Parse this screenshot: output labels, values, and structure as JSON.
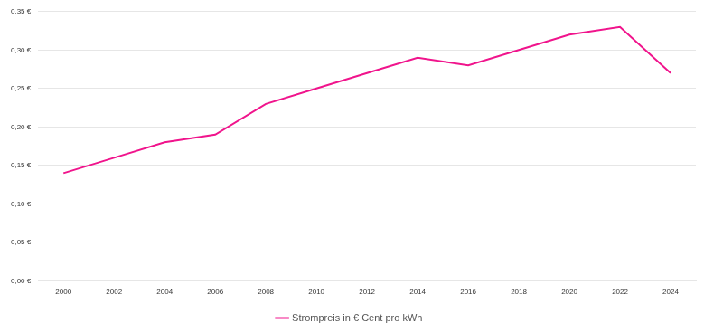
{
  "chart_data": {
    "type": "line",
    "categories": [
      "2000",
      "2002",
      "2004",
      "2006",
      "2008",
      "2010",
      "2012",
      "2014",
      "2016",
      "2018",
      "2020",
      "2022",
      "2024"
    ],
    "series": [
      {
        "name": "Strompreis in € Cent pro kWh",
        "color": "#f0148c",
        "values": [
          0.14,
          0.16,
          0.18,
          0.19,
          0.23,
          0.25,
          0.27,
          0.29,
          0.28,
          0.3,
          0.32,
          0.33,
          0.27
        ]
      }
    ],
    "ylim": [
      0,
      0.35
    ],
    "yticks": [
      {
        "value": 0,
        "label": "0,00 €"
      },
      {
        "value": 0.05,
        "label": "0,05 €"
      },
      {
        "value": 0.1,
        "label": "0,10 €"
      },
      {
        "value": 0.15,
        "label": "0,15 €"
      },
      {
        "value": 0.2,
        "label": "0,20 €"
      },
      {
        "value": 0.25,
        "label": "0,25 €"
      },
      {
        "value": 0.3,
        "label": "0,30 €"
      },
      {
        "value": 0.35,
        "label": "0,35 €"
      }
    ],
    "grid": true,
    "legend": "bottom"
  }
}
